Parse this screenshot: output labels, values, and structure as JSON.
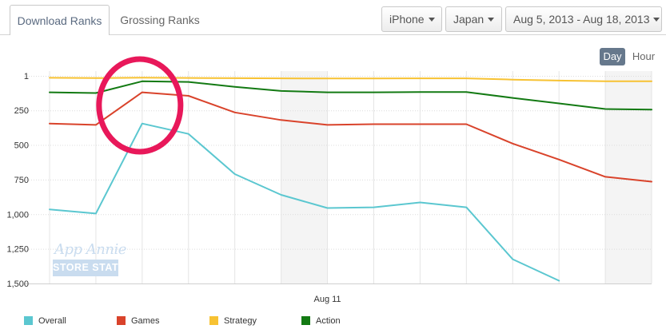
{
  "tabs": [
    {
      "label": "Download Ranks",
      "active": true
    },
    {
      "label": "Grossing Ranks",
      "active": false
    }
  ],
  "filters": {
    "device": "iPhone",
    "country": "Japan",
    "date_range": "Aug 5, 2013 - Aug 18, 2013"
  },
  "granularity": {
    "day_label": "Day",
    "hour_label": "Hour",
    "selected": "Day"
  },
  "watermark": {
    "line1": "App Annie",
    "line2": "STORE STATS"
  },
  "colors": {
    "overall": "#5bc7d0",
    "games": "#d9432b",
    "strategy": "#f7c233",
    "action": "#137a13",
    "weekend_band": "#f4f4f4",
    "highlight_circle": "#e8185a"
  },
  "chart_data": {
    "type": "line",
    "title": "",
    "xlabel": "",
    "ylabel": "",
    "y_inverted": true,
    "ylim": [
      1,
      1500
    ],
    "yticks": [
      "1",
      "250",
      "500",
      "750",
      "1,000",
      "1,250",
      "1,500"
    ],
    "ytick_values": [
      1,
      250,
      500,
      750,
      1000,
      1250,
      1500
    ],
    "x": [
      "2013-08-05",
      "2013-08-06",
      "2013-08-07",
      "2013-08-08",
      "2013-08-09",
      "2013-08-10",
      "2013-08-11",
      "2013-08-12",
      "2013-08-13",
      "2013-08-14",
      "2013-08-15",
      "2013-08-16",
      "2013-08-17",
      "2013-08-18"
    ],
    "xtick_labels": [
      {
        "x": "2013-08-11",
        "label": "Aug 11"
      }
    ],
    "weekend_bands": [
      [
        "2013-08-10",
        "2013-08-11"
      ],
      [
        "2013-08-17",
        "2013-08-18"
      ]
    ],
    "legend_position": "bottom-left",
    "series": [
      {
        "name": "Overall",
        "key": "overall",
        "values": [
          965,
          995,
          345,
          420,
          710,
          860,
          955,
          950,
          915,
          950,
          1325,
          1480,
          null,
          null
        ]
      },
      {
        "name": "Games",
        "key": "games",
        "values": [
          345,
          355,
          120,
          145,
          265,
          320,
          355,
          350,
          350,
          350,
          490,
          605,
          730,
          765
        ]
      },
      {
        "name": "Strategy",
        "key": "strategy",
        "values": [
          15,
          17,
          14,
          16,
          18,
          19,
          20,
          20,
          19,
          19,
          28,
          35,
          40,
          40
        ]
      },
      {
        "name": "Action",
        "key": "action",
        "values": [
          120,
          125,
          40,
          45,
          80,
          110,
          120,
          120,
          118,
          118,
          160,
          200,
          240,
          245
        ]
      }
    ],
    "annotation": {
      "type": "circle",
      "target": "2013-08-07"
    }
  }
}
